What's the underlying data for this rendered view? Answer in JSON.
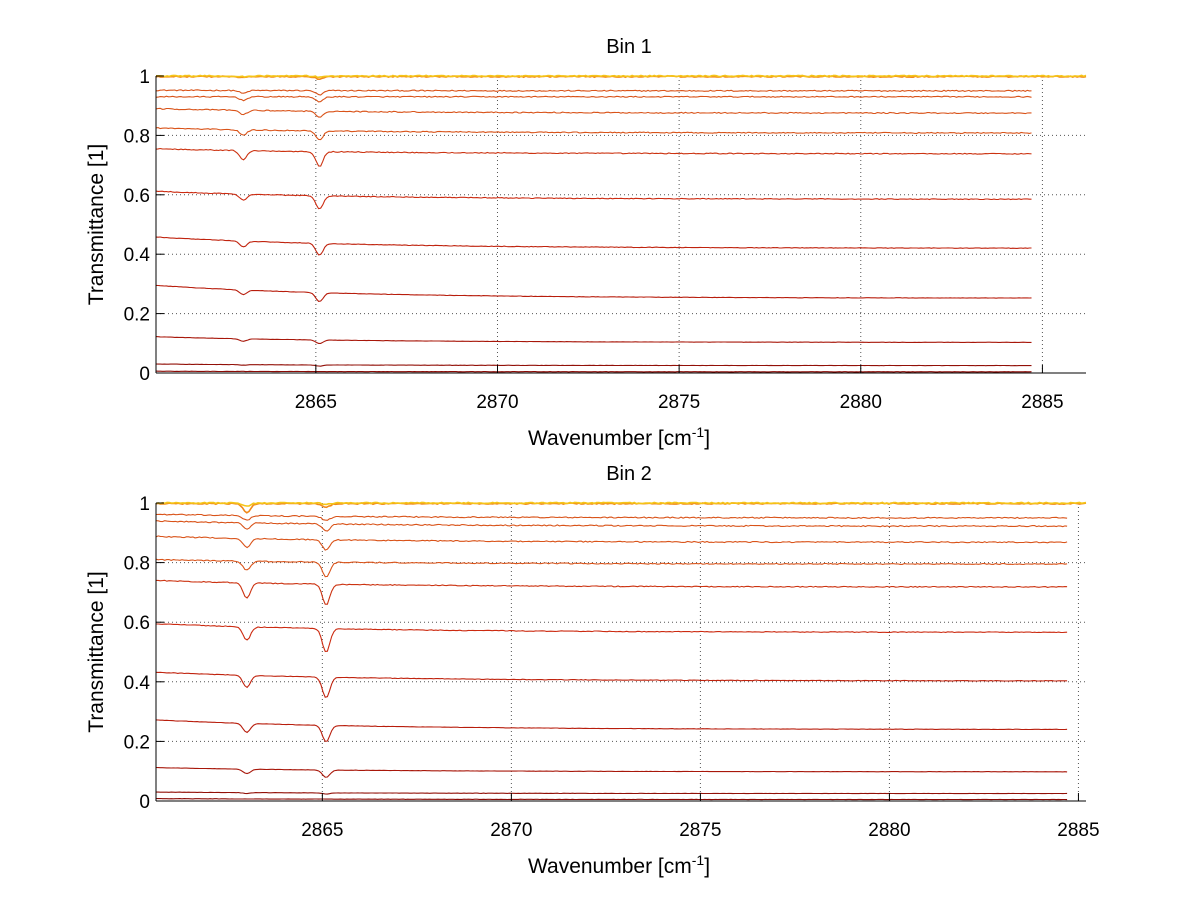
{
  "chart_data": [
    {
      "type": "line",
      "title": "Bin 1",
      "xlabel": "Wavenumber [cm",
      "xlabel_sup": "-1",
      "xlabel_tail": "]",
      "ylabel": "Transmittance [1]",
      "xlim": [
        2860.6,
        2886.2
      ],
      "ylim": [
        0,
        1
      ],
      "xticks": [
        2865,
        2870,
        2875,
        2880,
        2885
      ],
      "xtick_labels": [
        "2865",
        "2870",
        "2875",
        "2880",
        "2885"
      ],
      "yticks": [
        0,
        0.2,
        0.4,
        0.6,
        0.8,
        1
      ],
      "ytick_labels": [
        "0",
        "0.2",
        "0.4",
        "0.6",
        "0.8",
        "1"
      ],
      "grid": true,
      "legend": "none",
      "dip_positions": [
        2863.0,
        2865.1
      ],
      "x_range": [
        2860.6,
        2884.7
      ],
      "series": [
        {
          "start": 0.952,
          "end": 0.95,
          "dips": [
            0.01,
            0.015
          ],
          "color": "#d95319"
        },
        {
          "start": 0.93,
          "end": 0.93,
          "dips": [
            0.012,
            0.018
          ],
          "color": "#d95319"
        },
        {
          "start": 0.89,
          "end": 0.875,
          "dips": [
            0.015,
            0.022
          ],
          "color": "#d95319"
        },
        {
          "start": 0.825,
          "end": 0.808,
          "dips": [
            0.018,
            0.03
          ],
          "color": "#d95319"
        },
        {
          "start": 0.755,
          "end": 0.738,
          "dips": [
            0.03,
            0.05
          ],
          "color": "#cc3311"
        },
        {
          "start": 0.612,
          "end": 0.585,
          "dips": [
            0.02,
            0.045
          ],
          "color": "#cc2a10"
        },
        {
          "start": 0.458,
          "end": 0.42,
          "dips": [
            0.02,
            0.04
          ],
          "color": "#c0230e"
        },
        {
          "start": 0.295,
          "end": 0.252,
          "dips": [
            0.015,
            0.03
          ],
          "color": "#b81d0c"
        },
        {
          "start": 0.122,
          "end": 0.103,
          "dips": [
            0.008,
            0.012
          ],
          "color": "#a8170a"
        },
        {
          "start": 0.03,
          "end": 0.025,
          "dips": [
            0.002,
            0.004
          ],
          "color": "#921008"
        },
        {
          "start": 0.006,
          "end": 0.004,
          "dips": [
            0.0,
            0.0
          ],
          "color": "#8a0a05"
        },
        {
          "start": 0.998,
          "end": 0.998,
          "dips": [
            0.004,
            0.008
          ],
          "color": "#f08a1c",
          "full_width": true
        },
        {
          "start": 1.0,
          "end": 1.0,
          "dips": [
            0.002,
            0.004
          ],
          "color": "#f5c518",
          "full_width": true
        }
      ]
    },
    {
      "type": "line",
      "title": "Bin 2",
      "xlabel": "Wavenumber [cm",
      "xlabel_sup": "-1",
      "xlabel_tail": "]",
      "ylabel": "Transmittance [1]",
      "xlim": [
        2860.6,
        2885.2
      ],
      "ylim": [
        0,
        1
      ],
      "xticks": [
        2865,
        2870,
        2875,
        2880,
        2885
      ],
      "xtick_labels": [
        "2865",
        "2870",
        "2875",
        "2880",
        "2885"
      ],
      "yticks": [
        0,
        0.2,
        0.4,
        0.6,
        0.8,
        1
      ],
      "ytick_labels": [
        "0",
        "0.2",
        "0.4",
        "0.6",
        "0.8",
        "1"
      ],
      "grid": true,
      "legend": "none",
      "dip_positions": [
        2863.0,
        2865.1
      ],
      "x_range": [
        2860.6,
        2884.7
      ],
      "series": [
        {
          "start": 0.962,
          "end": 0.95,
          "dips": [
            0.015,
            0.015
          ],
          "color": "#d95319"
        },
        {
          "start": 0.94,
          "end": 0.922,
          "dips": [
            0.02,
            0.025
          ],
          "color": "#d95319"
        },
        {
          "start": 0.888,
          "end": 0.868,
          "dips": [
            0.03,
            0.035
          ],
          "color": "#d95319"
        },
        {
          "start": 0.81,
          "end": 0.795,
          "dips": [
            0.03,
            0.05
          ],
          "color": "#d95319"
        },
        {
          "start": 0.74,
          "end": 0.718,
          "dips": [
            0.05,
            0.07
          ],
          "color": "#cc3311"
        },
        {
          "start": 0.595,
          "end": 0.566,
          "dips": [
            0.045,
            0.08
          ],
          "color": "#cc2a10"
        },
        {
          "start": 0.432,
          "end": 0.403,
          "dips": [
            0.04,
            0.07
          ],
          "color": "#c0230e"
        },
        {
          "start": 0.272,
          "end": 0.24,
          "dips": [
            0.03,
            0.055
          ],
          "color": "#b81d0c"
        },
        {
          "start": 0.112,
          "end": 0.098,
          "dips": [
            0.015,
            0.025
          ],
          "color": "#a8170a"
        },
        {
          "start": 0.03,
          "end": 0.025,
          "dips": [
            0.003,
            0.004
          ],
          "color": "#921008"
        },
        {
          "start": 0.008,
          "end": 0.005,
          "dips": [
            0.0,
            0.0
          ],
          "color": "#8a0a05"
        },
        {
          "start": 0.998,
          "end": 0.998,
          "dips": [
            0.03,
            0.012
          ],
          "color": "#f08a1c",
          "full_width": true
        },
        {
          "start": 1.0,
          "end": 1.0,
          "dips": [
            0.01,
            0.004
          ],
          "color": "#f5c518",
          "full_width": true
        }
      ]
    }
  ]
}
